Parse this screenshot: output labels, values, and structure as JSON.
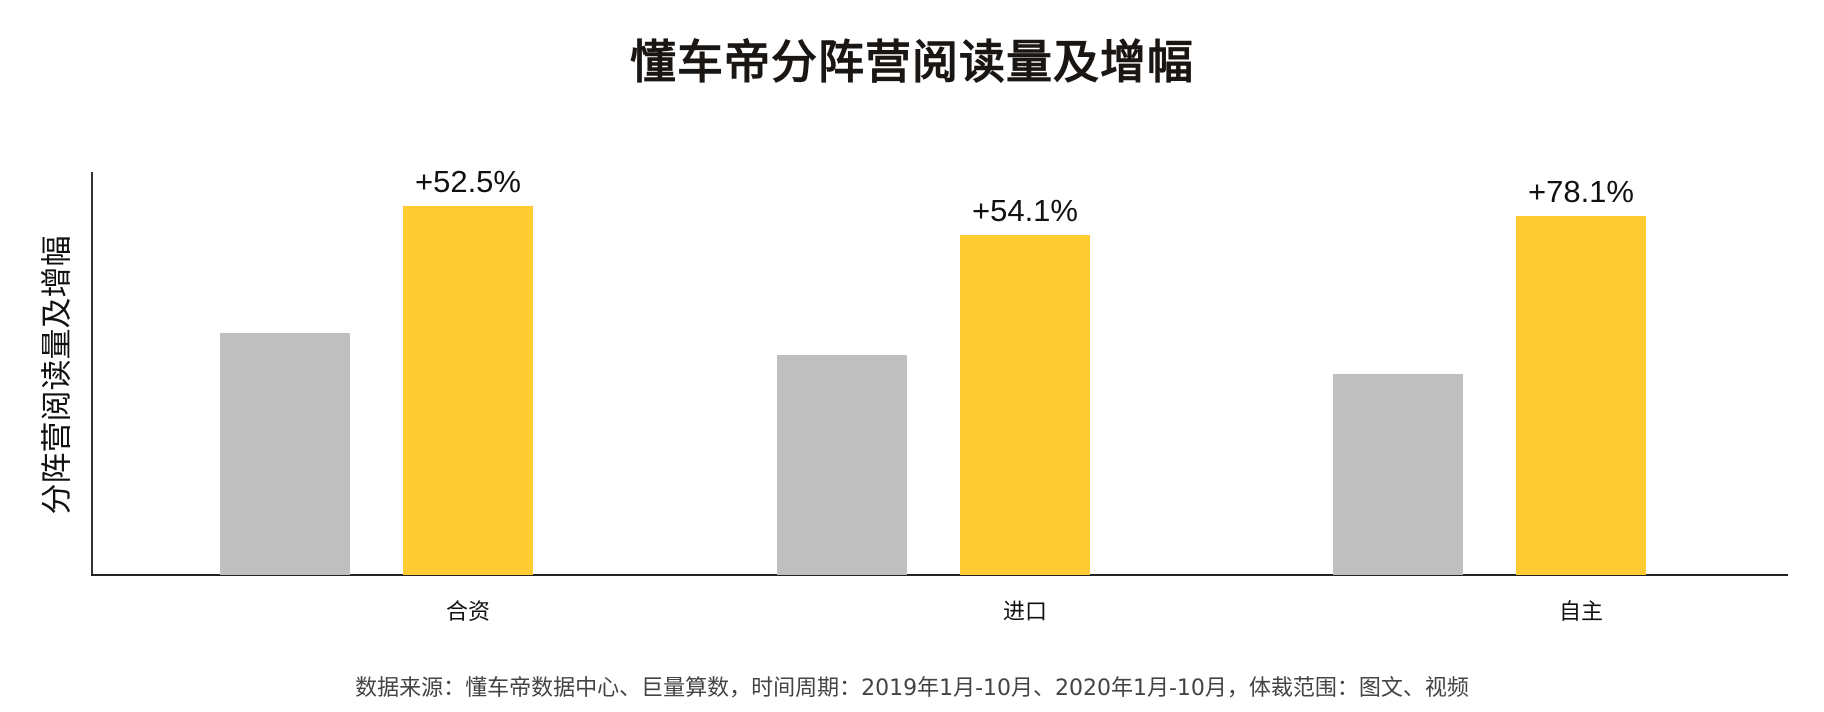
{
  "title": "懂车帝分阵营阅读量及增幅",
  "ylabel": "分阵营阅读量及增幅",
  "footer": "数据来源：懂车帝数据中心、巨量算数，时间周期：2019年1月-10月、2020年1月-10月，体裁范围：图文、视频",
  "colors": {
    "series_2019": "#bfbfbf",
    "series_2020": "#ffcb33",
    "axis": "#222222"
  },
  "chart_data": {
    "type": "bar",
    "title": "懂车帝分阵营阅读量及增幅",
    "xlabel": "",
    "ylabel": "分阵营阅读量及增幅",
    "categories": [
      "合资",
      "进口",
      "自主"
    ],
    "series": [
      {
        "name": "2019年1月-10月",
        "color": "#bfbfbf",
        "values": [
          242,
          220,
          201
        ]
      },
      {
        "name": "2020年1月-10月",
        "color": "#ffcb33",
        "values": [
          369,
          340,
          359
        ]
      }
    ],
    "annotations": [
      "+52.5%",
      "+54.1%",
      "+78.1%"
    ],
    "ylim": [
      0,
      403
    ],
    "grid": false,
    "legend": "none",
    "note": "No y-axis ticks shown; values are relative bar heights"
  },
  "groups": [
    {
      "category": "合资",
      "growth": "+52.5%"
    },
    {
      "category": "进口",
      "growth": "+54.1%"
    },
    {
      "category": "自主",
      "growth": "+78.1%"
    }
  ]
}
